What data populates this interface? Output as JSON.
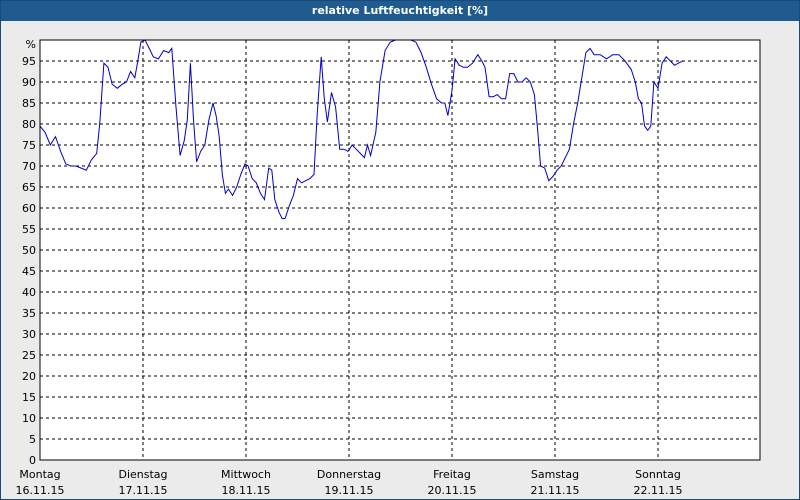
{
  "chart_data": {
    "type": "line",
    "title": "relative Luftfeuchtigkeit [%]",
    "ylabel": "%",
    "ylim": [
      0,
      100
    ],
    "xlim": [
      0,
      7
    ],
    "y_ticks": [
      0,
      5,
      10,
      15,
      20,
      25,
      30,
      35,
      40,
      45,
      50,
      55,
      60,
      65,
      70,
      75,
      80,
      85,
      90,
      95
    ],
    "x_ticks": [
      {
        "day": "Montag",
        "date": "16.11.15",
        "x": 0
      },
      {
        "day": "Dienstag",
        "date": "17.11.15",
        "x": 1
      },
      {
        "day": "Mittwoch",
        "date": "18.11.15",
        "x": 2
      },
      {
        "day": "Donnerstag",
        "date": "19.11.15",
        "x": 3
      },
      {
        "day": "Freitag",
        "date": "20.11.15",
        "x": 4
      },
      {
        "day": "Samstag",
        "date": "21.11.15",
        "x": 5
      },
      {
        "day": "Sonntag",
        "date": "22.11.15",
        "x": 6
      }
    ],
    "grid": true,
    "color": "#0000c8",
    "series": [
      {
        "values": [
          [
            0.0,
            79.5
          ],
          [
            0.05,
            78
          ],
          [
            0.1,
            75
          ],
          [
            0.15,
            77
          ],
          [
            0.2,
            73.5
          ],
          [
            0.25,
            70.5
          ],
          [
            0.3,
            70
          ],
          [
            0.35,
            70
          ],
          [
            0.4,
            69.5
          ],
          [
            0.45,
            69
          ],
          [
            0.5,
            71.5
          ],
          [
            0.55,
            73
          ],
          [
            0.58,
            80
          ],
          [
            0.62,
            94.5
          ],
          [
            0.66,
            93.5
          ],
          [
            0.7,
            89.5
          ],
          [
            0.75,
            88.5
          ],
          [
            0.8,
            89.5
          ],
          [
            0.84,
            90
          ],
          [
            0.88,
            92.5
          ],
          [
            0.92,
            91
          ],
          [
            0.95,
            95
          ],
          [
            0.98,
            99.5
          ],
          [
            1.02,
            100
          ],
          [
            1.06,
            98
          ],
          [
            1.1,
            96
          ],
          [
            1.15,
            95.5
          ],
          [
            1.2,
            97.5
          ],
          [
            1.25,
            97
          ],
          [
            1.28,
            98
          ],
          [
            1.32,
            84
          ],
          [
            1.36,
            72.5
          ],
          [
            1.4,
            76
          ],
          [
            1.43,
            81
          ],
          [
            1.46,
            94.5
          ],
          [
            1.49,
            81
          ],
          [
            1.52,
            71
          ],
          [
            1.56,
            73.5
          ],
          [
            1.6,
            75
          ],
          [
            1.64,
            81
          ],
          [
            1.68,
            85
          ],
          [
            1.71,
            82
          ],
          [
            1.74,
            77
          ],
          [
            1.77,
            68
          ],
          [
            1.8,
            63.5
          ],
          [
            1.83,
            64.5
          ],
          [
            1.87,
            63
          ],
          [
            1.91,
            65
          ],
          [
            1.95,
            68
          ],
          [
            1.99,
            70.5
          ],
          [
            2.02,
            70
          ],
          [
            2.06,
            67
          ],
          [
            2.1,
            66
          ],
          [
            2.14,
            63.5
          ],
          [
            2.18,
            62
          ],
          [
            2.22,
            69.5
          ],
          [
            2.25,
            69
          ],
          [
            2.28,
            62
          ],
          [
            2.32,
            59
          ],
          [
            2.35,
            57.5
          ],
          [
            2.38,
            57.5
          ],
          [
            2.42,
            60.5
          ],
          [
            2.46,
            63
          ],
          [
            2.5,
            67
          ],
          [
            2.54,
            66
          ],
          [
            2.58,
            66.5
          ],
          [
            2.62,
            67
          ],
          [
            2.66,
            68
          ],
          [
            2.69,
            82
          ],
          [
            2.73,
            96
          ],
          [
            2.76,
            86
          ],
          [
            2.79,
            80.5
          ],
          [
            2.83,
            87.5
          ],
          [
            2.87,
            84
          ],
          [
            2.91,
            74
          ],
          [
            2.95,
            74
          ],
          [
            2.99,
            73.5
          ],
          [
            3.03,
            75
          ],
          [
            3.07,
            74
          ],
          [
            3.11,
            73
          ],
          [
            3.15,
            72
          ],
          [
            3.18,
            75
          ],
          [
            3.21,
            72.5
          ],
          [
            3.26,
            78
          ],
          [
            3.3,
            90
          ],
          [
            3.35,
            97.5
          ],
          [
            3.4,
            99.5
          ],
          [
            3.45,
            100
          ],
          [
            3.55,
            100
          ],
          [
            3.6,
            100
          ],
          [
            3.65,
            99.5
          ],
          [
            3.7,
            97
          ],
          [
            3.75,
            93.5
          ],
          [
            3.8,
            89.5
          ],
          [
            3.85,
            86
          ],
          [
            3.9,
            85
          ],
          [
            3.93,
            85
          ],
          [
            3.96,
            82
          ],
          [
            4.0,
            88
          ],
          [
            4.03,
            95.5
          ],
          [
            4.07,
            94
          ],
          [
            4.11,
            93.5
          ],
          [
            4.15,
            93.5
          ],
          [
            4.2,
            94.5
          ],
          [
            4.25,
            96.5
          ],
          [
            4.29,
            95
          ],
          [
            4.32,
            93.5
          ],
          [
            4.36,
            86.5
          ],
          [
            4.4,
            86.5
          ],
          [
            4.44,
            87
          ],
          [
            4.48,
            86
          ],
          [
            4.52,
            86
          ],
          [
            4.56,
            92
          ],
          [
            4.6,
            92
          ],
          [
            4.64,
            90
          ],
          [
            4.68,
            90
          ],
          [
            4.72,
            91
          ],
          [
            4.76,
            90
          ],
          [
            4.8,
            87
          ],
          [
            4.83,
            79
          ],
          [
            4.86,
            70
          ],
          [
            4.9,
            69.5
          ],
          [
            4.94,
            66.5
          ],
          [
            4.98,
            67.5
          ],
          [
            5.02,
            69
          ],
          [
            5.06,
            70
          ],
          [
            5.1,
            72
          ],
          [
            5.14,
            74
          ],
          [
            5.18,
            80
          ],
          [
            5.22,
            85
          ],
          [
            5.26,
            91
          ],
          [
            5.3,
            97
          ],
          [
            5.34,
            98
          ],
          [
            5.38,
            96.5
          ],
          [
            5.44,
            96.5
          ],
          [
            5.5,
            95.5
          ],
          [
            5.56,
            96.5
          ],
          [
            5.62,
            96.5
          ],
          [
            5.68,
            95
          ],
          [
            5.74,
            93
          ],
          [
            5.78,
            90
          ],
          [
            5.81,
            86
          ],
          [
            5.84,
            85
          ],
          [
            5.87,
            79.5
          ],
          [
            5.9,
            78.5
          ],
          [
            5.93,
            79.5
          ],
          [
            5.96,
            90
          ],
          [
            6.0,
            88.5
          ],
          [
            6.04,
            94.5
          ],
          [
            6.08,
            96
          ],
          [
            6.12,
            95
          ],
          [
            6.16,
            94
          ],
          [
            6.2,
            94.5
          ],
          [
            6.24,
            95
          ]
        ]
      }
    ]
  }
}
